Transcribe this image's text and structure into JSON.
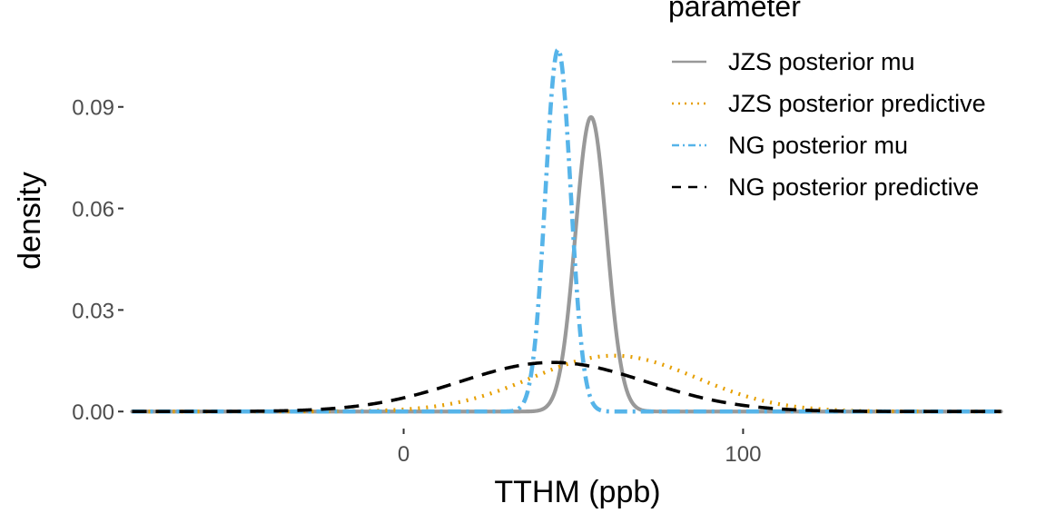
{
  "chart_data": {
    "type": "line",
    "title": "",
    "xlabel": "TTHM (ppb)",
    "ylabel": "density",
    "xlim": [
      -82,
      178
    ],
    "ylim": [
      -0.0045,
      0.113
    ],
    "x_ticks": [
      0,
      100
    ],
    "x_tick_labels": [
      "0",
      "100"
    ],
    "y_ticks": [
      0.0,
      0.03,
      0.06,
      0.09
    ],
    "y_tick_labels": [
      "0.00",
      "0.03",
      "0.06",
      "0.09"
    ],
    "grid": false,
    "legend": {
      "title": "parameter",
      "placement": "right-top"
    },
    "series": [
      {
        "name": "JZS posterior mu",
        "color": "#999999",
        "dash": "solid",
        "distribution": "normal",
        "center": 55.2,
        "peak_density": 0.087,
        "x": [
          30,
          40,
          45,
          48,
          50,
          52,
          54,
          55.2,
          57,
          59,
          61,
          63,
          66,
          70,
          80,
          178
        ],
        "y": [
          0.0,
          0.0002,
          0.0036,
          0.0161,
          0.0335,
          0.0598,
          0.0823,
          0.087,
          0.0781,
          0.0537,
          0.0305,
          0.0138,
          0.0032,
          0.0002,
          0.0,
          0.0
        ]
      },
      {
        "name": "JZS posterior predictive",
        "color": "#E69F00",
        "dash": "dotted",
        "distribution": "normal",
        "center": 62.0,
        "peak_density": 0.0165,
        "x": [
          -82,
          -40,
          -20,
          0,
          10,
          20,
          30,
          40,
          50,
          62,
          70,
          80,
          90,
          100,
          110,
          120,
          140,
          160,
          178
        ],
        "y": [
          0.0,
          0.0,
          0.0003,
          0.0014,
          0.0025,
          0.0042,
          0.0065,
          0.0096,
          0.0131,
          0.0165,
          0.0153,
          0.0119,
          0.0085,
          0.0054,
          0.0031,
          0.0016,
          0.0003,
          0.0,
          0.0
        ]
      },
      {
        "name": "NG posterior mu",
        "color": "#56B4E9",
        "dash": "dashdot",
        "distribution": "normal",
        "center": 45.5,
        "peak_density": 0.107,
        "x": [
          -82,
          30,
          36,
          39,
          41,
          43,
          45.5,
          48,
          50,
          52,
          55,
          61,
          178
        ],
        "y": [
          0.0,
          0.0,
          0.0059,
          0.028,
          0.0543,
          0.0868,
          0.107,
          0.0868,
          0.0543,
          0.028,
          0.0059,
          0.0,
          0.0
        ]
      },
      {
        "name": "NG posterior predictive",
        "color": "#000000",
        "dash": "dashed",
        "distribution": "normal",
        "center": 44.0,
        "peak_density": 0.0145,
        "x": [
          -82,
          -40,
          -20,
          0,
          10,
          20,
          30,
          44,
          55,
          65,
          75,
          85,
          95,
          110,
          130,
          150,
          178
        ],
        "y": [
          0.0,
          0.0001,
          0.0009,
          0.0036,
          0.0058,
          0.0087,
          0.0117,
          0.0145,
          0.0131,
          0.0109,
          0.0081,
          0.0054,
          0.0031,
          0.0011,
          0.0002,
          0.0,
          0.0
        ]
      }
    ]
  }
}
